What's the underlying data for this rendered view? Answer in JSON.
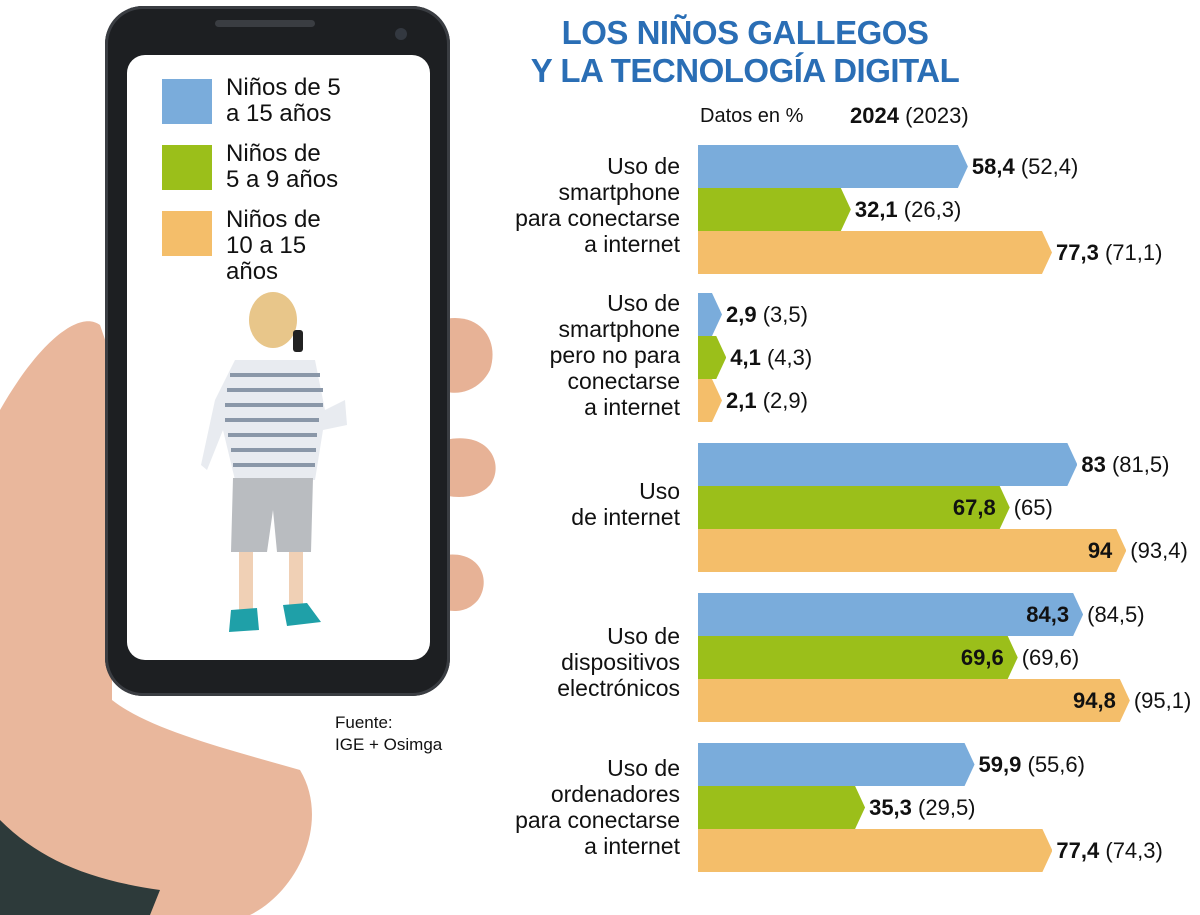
{
  "title": {
    "line1": "LOS NIÑOS GALLEGOS",
    "line2": "Y LA TECNOLOGÍA DIGITAL"
  },
  "units_label": "Datos en %",
  "year_current": "2024",
  "year_previous": "(2023)",
  "source": "Fuente:\nIGE + Osimga",
  "legend": [
    {
      "label": "Niños de 5\na 15 años",
      "color": "#7aacdb"
    },
    {
      "label": "Niños de\n5 a 9 años",
      "color": "#9bbf1a"
    },
    {
      "label": "Niños de\n10 a 15\naños",
      "color": "#f4be6a"
    }
  ],
  "chart_data": {
    "type": "bar",
    "orientation": "horizontal",
    "title": "LOS NIÑOS GALLEGOS Y LA TECNOLOGÍA DIGITAL",
    "xlabel": "Datos en %",
    "ylabel": "",
    "xlim": [
      0,
      100
    ],
    "grid": false,
    "legend_position": "upper-left (on phone screen)",
    "categories": [
      "Uso de smartphone para conectarse a internet",
      "Uso de smartphone pero no para conectarse a internet",
      "Uso de internet",
      "Uso de dispositivos electrónicos",
      "Uso de ordenadores para conectarse a internet"
    ],
    "series": [
      {
        "name": "Niños de 5 a 15 años",
        "year": 2024,
        "values": [
          58.4,
          2.9,
          83,
          84.3,
          59.9
        ],
        "values_2023": [
          52.4,
          3.5,
          81.5,
          84.5,
          55.6
        ]
      },
      {
        "name": "Niños de 5 a 9 años",
        "year": 2024,
        "values": [
          32.1,
          4.1,
          67.8,
          69.6,
          35.3
        ],
        "values_2023": [
          26.3,
          4.3,
          65,
          69.6,
          29.5
        ]
      },
      {
        "name": "Niños de 10 a 15 años",
        "year": 2024,
        "values": [
          77.3,
          2.1,
          94,
          94.8,
          77.4
        ],
        "values_2023": [
          71.1,
          2.9,
          93.4,
          95.1,
          74.3
        ]
      }
    ]
  },
  "groups": [
    {
      "label": "Uso de\nsmartphone\npara conectarse\na internet",
      "bars": [
        {
          "v": "58,4",
          "p": "(52,4)"
        },
        {
          "v": "32,1",
          "p": "(26,3)"
        },
        {
          "v": "77,3",
          "p": "(71,1)"
        }
      ]
    },
    {
      "label": "Uso de\nsmartphone\npero no para\nconectarse\na internet",
      "bars": [
        {
          "v": "2,9",
          "p": "(3,5)"
        },
        {
          "v": "4,1",
          "p": "(4,3)"
        },
        {
          "v": "2,1",
          "p": "(2,9)"
        }
      ]
    },
    {
      "label": "Uso\nde internet",
      "bars": [
        {
          "v": "83",
          "p": "(81,5)"
        },
        {
          "v": "67,8",
          "p": "(65)"
        },
        {
          "v": "94",
          "p": "(93,4)"
        }
      ]
    },
    {
      "label": "Uso de\ndispositivos\nelectrónicos",
      "bars": [
        {
          "v": "84,3",
          "p": "(84,5)"
        },
        {
          "v": "69,6",
          "p": "(69,6)"
        },
        {
          "v": "94,8",
          "p": "(95,1)"
        }
      ]
    },
    {
      "label": "Uso de\nordenadores\npara conectarse\na internet",
      "bars": [
        {
          "v": "59,9",
          "p": "(55,6)"
        },
        {
          "v": "35,3",
          "p": "(29,5)"
        },
        {
          "v": "77,4",
          "p": "(74,3)"
        }
      ]
    }
  ]
}
